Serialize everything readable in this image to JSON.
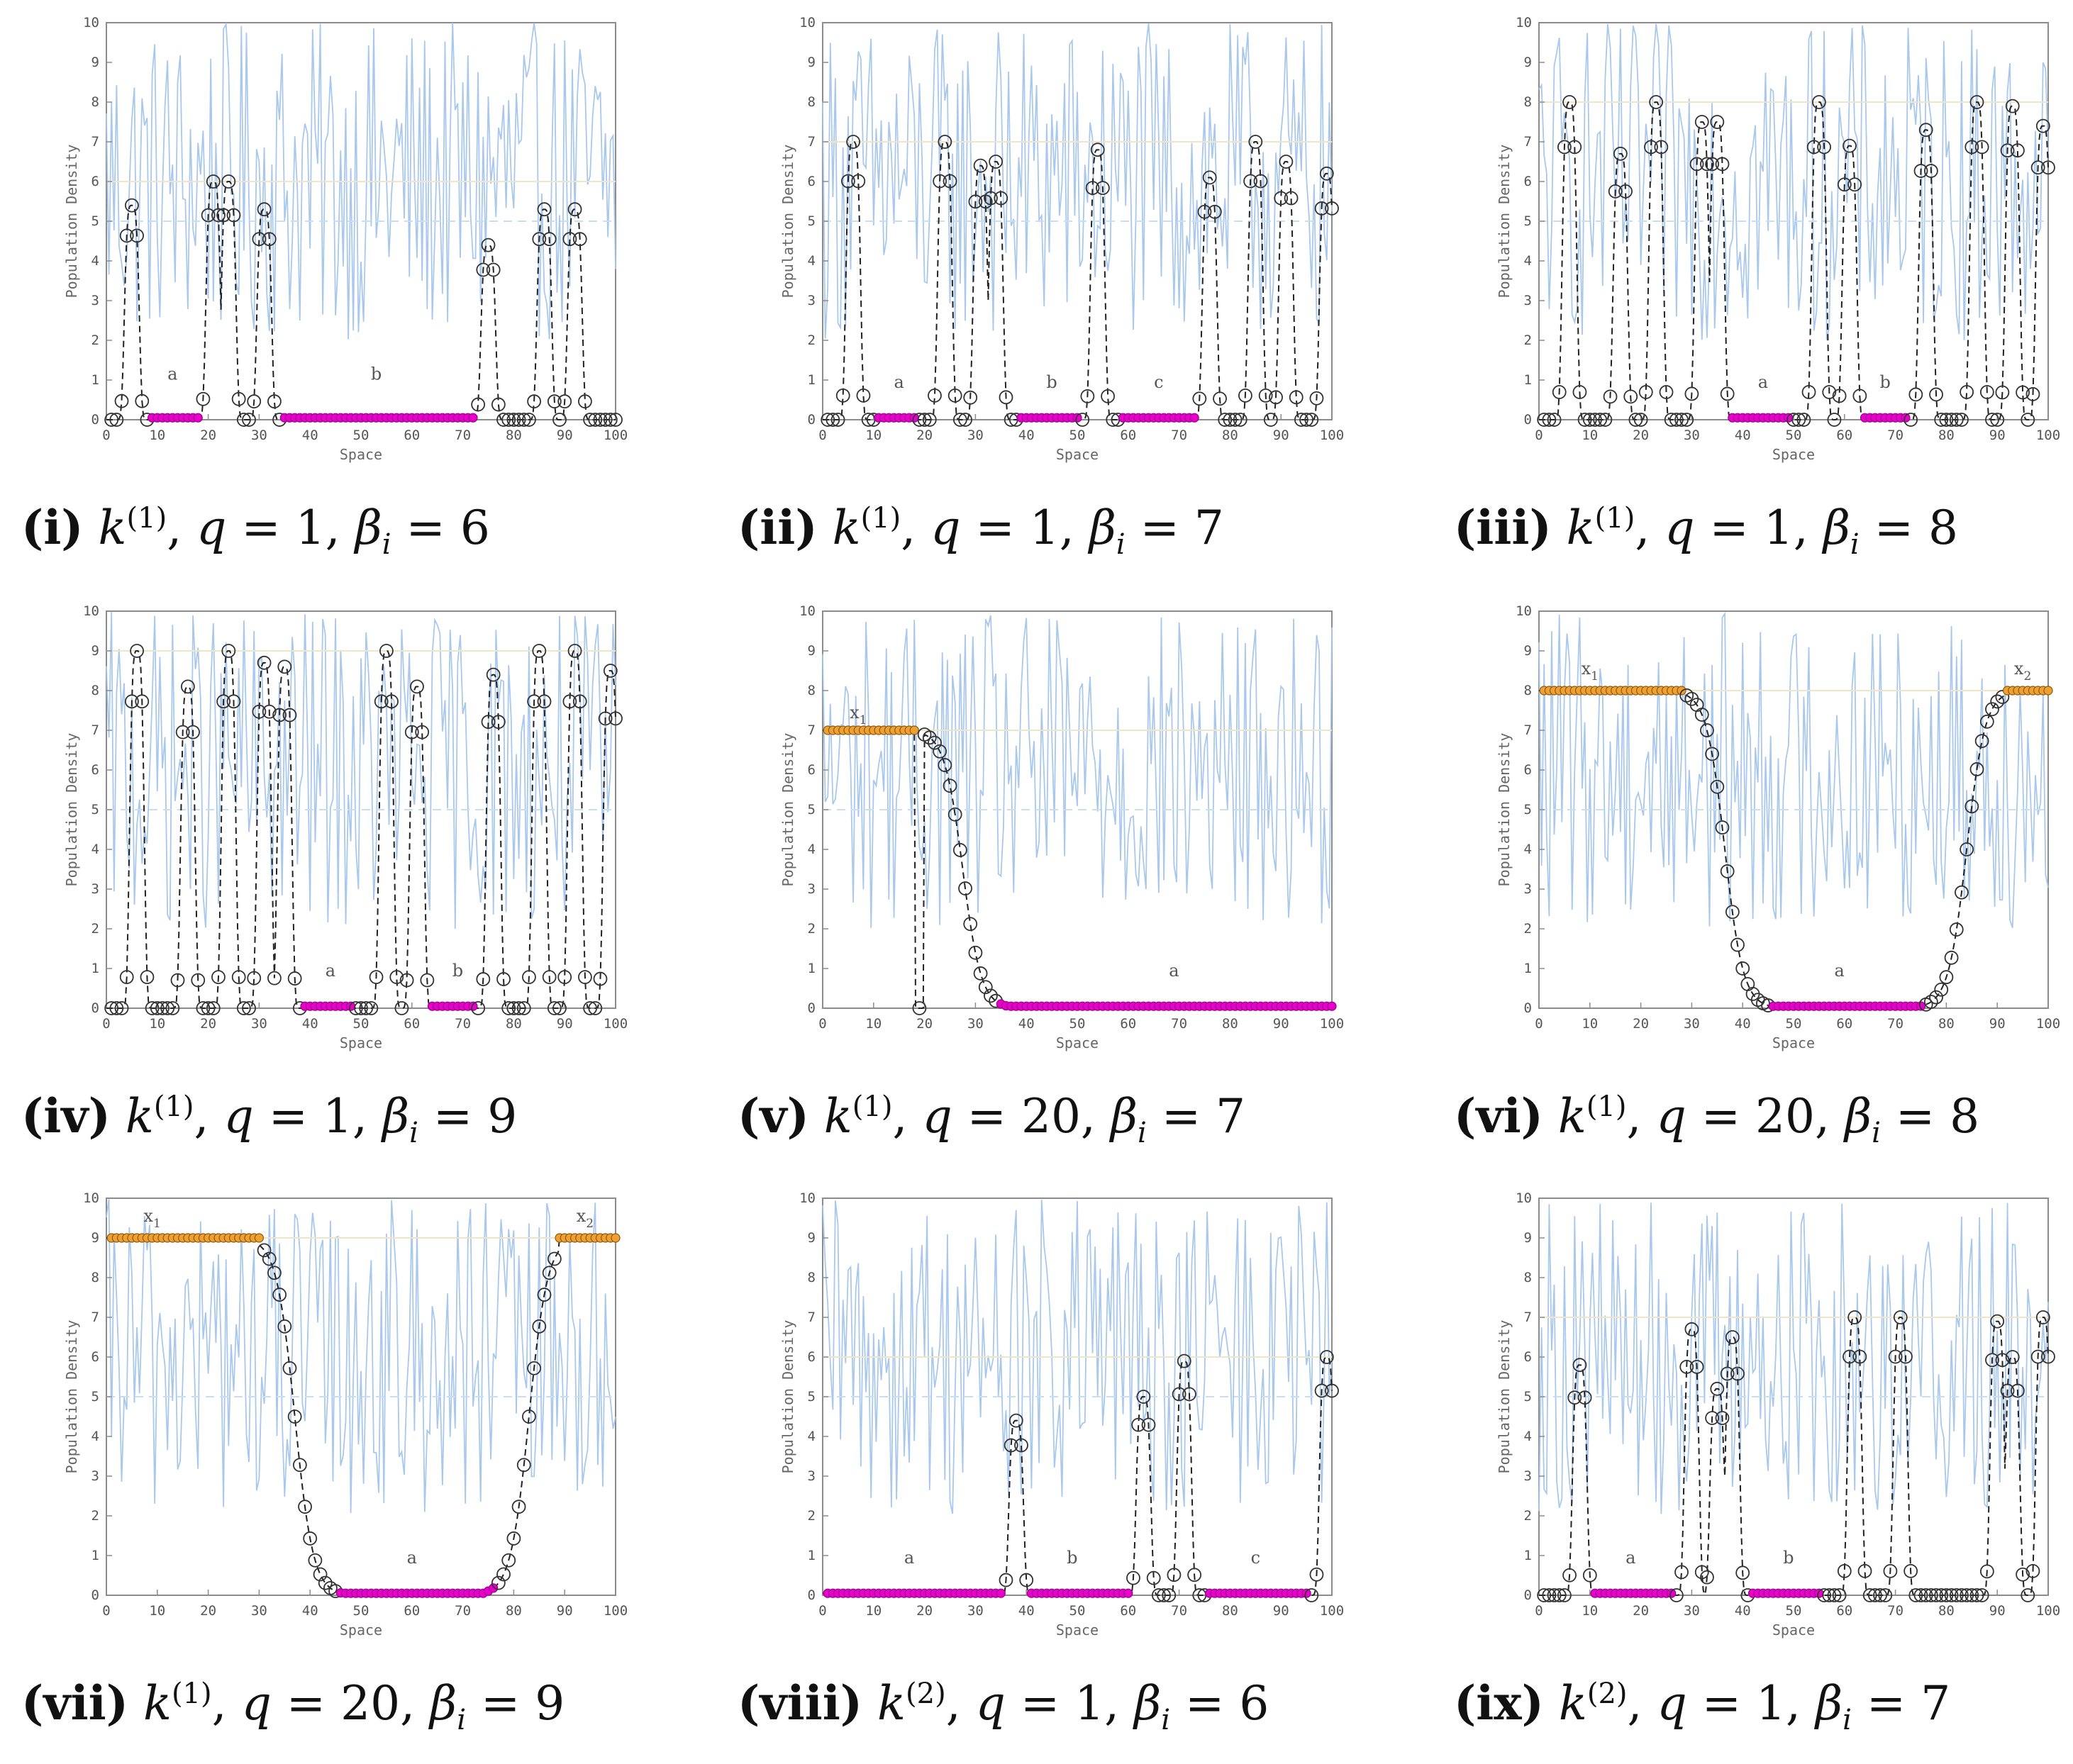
{
  "chart_data": [
    {
      "id": "i",
      "type": "line",
      "caption": {
        "num": "(i)",
        "k": "k",
        "kexp": "(1)",
        "q": "1",
        "beta": "6"
      },
      "xlabel": "Space",
      "ylabel": "Population Density",
      "xlim": [
        0,
        100
      ],
      "ylim": [
        0,
        10
      ],
      "xticks": [
        0,
        10,
        20,
        30,
        40,
        50,
        60,
        70,
        80,
        90,
        100
      ],
      "yticks": [
        0,
        1,
        2,
        3,
        4,
        5,
        6,
        7,
        8,
        9,
        10
      ],
      "threshold": 6,
      "midline": 5,
      "annotations": [
        {
          "text": "a",
          "x": 13,
          "y": 0.9
        },
        {
          "text": "b",
          "x": 53,
          "y": 0.9
        }
      ],
      "bumps": [
        [
          5,
          5.4
        ],
        [
          21,
          6
        ],
        [
          24,
          6
        ],
        [
          31,
          5.3
        ],
        [
          75,
          4.4
        ],
        [
          86,
          5.3
        ],
        [
          92,
          5.3
        ]
      ],
      "zero_segments": [
        [
          9,
          18
        ],
        [
          35,
          73
        ]
      ],
      "plateaus": []
    },
    {
      "id": "ii",
      "type": "line",
      "caption": {
        "num": "(ii)",
        "k": "k",
        "kexp": "(1)",
        "q": "1",
        "beta": "7"
      },
      "xlabel": "Space",
      "ylabel": "Population Density",
      "xlim": [
        0,
        100
      ],
      "ylim": [
        0,
        10
      ],
      "xticks": [
        0,
        10,
        20,
        30,
        40,
        50,
        60,
        70,
        80,
        90,
        100
      ],
      "yticks": [
        0,
        1,
        2,
        3,
        4,
        5,
        6,
        7,
        8,
        9,
        10
      ],
      "threshold": 7,
      "midline": 5,
      "annotations": [
        {
          "text": "a",
          "x": 15,
          "y": 0.7
        },
        {
          "text": "b",
          "x": 45,
          "y": 0.7
        },
        {
          "text": "c",
          "x": 66,
          "y": 0.7
        }
      ],
      "bumps": [
        [
          6,
          7
        ],
        [
          24,
          7
        ],
        [
          31,
          6.4
        ],
        [
          34,
          6.5
        ],
        [
          54,
          6.8
        ],
        [
          76,
          6.1
        ],
        [
          85,
          7
        ],
        [
          91,
          6.5
        ],
        [
          99,
          6.2
        ]
      ],
      "zero_segments": [
        [
          11,
          18
        ],
        [
          39,
          50
        ],
        [
          59,
          73
        ]
      ],
      "plateaus": []
    },
    {
      "id": "iii",
      "type": "line",
      "caption": {
        "num": "(iii)",
        "k": "k",
        "kexp": "(1)",
        "q": "1",
        "beta": "8"
      },
      "xlabel": "Space",
      "ylabel": "Population Density",
      "xlim": [
        0,
        100
      ],
      "ylim": [
        0,
        10
      ],
      "xticks": [
        0,
        10,
        20,
        30,
        40,
        50,
        60,
        70,
        80,
        90,
        100
      ],
      "yticks": [
        0,
        1,
        2,
        3,
        4,
        5,
        6,
        7,
        8,
        9,
        10
      ],
      "threshold": 8,
      "midline": 5,
      "annotations": [
        {
          "text": "a",
          "x": 44,
          "y": 0.7
        },
        {
          "text": "b",
          "x": 68,
          "y": 0.7
        }
      ],
      "bumps": [
        [
          6,
          8
        ],
        [
          16,
          6.7
        ],
        [
          23,
          8
        ],
        [
          32,
          7.5
        ],
        [
          35,
          7.5
        ],
        [
          55,
          8
        ],
        [
          61,
          6.9
        ],
        [
          76,
          7.3
        ],
        [
          86,
          8
        ],
        [
          93,
          7.9
        ],
        [
          99,
          7.4
        ]
      ],
      "zero_segments": [
        [
          38,
          49
        ],
        [
          63,
          72
        ]
      ],
      "plateaus": []
    },
    {
      "id": "iv",
      "type": "line",
      "caption": {
        "num": "(iv)",
        "k": "k",
        "kexp": "(1)",
        "q": "1",
        "beta": "9"
      },
      "xlabel": "Space",
      "ylabel": "Population Density",
      "xlim": [
        0,
        100
      ],
      "ylim": [
        0,
        10
      ],
      "xticks": [
        0,
        10,
        20,
        30,
        40,
        50,
        60,
        70,
        80,
        90,
        100
      ],
      "yticks": [
        0,
        1,
        2,
        3,
        4,
        5,
        6,
        7,
        8,
        9,
        10
      ],
      "threshold": 9,
      "midline": 5,
      "annotations": [
        {
          "text": "a",
          "x": 44,
          "y": 0.7
        },
        {
          "text": "b",
          "x": 69,
          "y": 0.7
        }
      ],
      "bumps": [
        [
          6,
          9
        ],
        [
          16,
          8.1
        ],
        [
          24,
          9
        ],
        [
          31,
          8.7
        ],
        [
          35,
          8.6
        ],
        [
          55,
          9
        ],
        [
          61,
          8.1
        ],
        [
          76,
          8.4
        ],
        [
          85,
          9
        ],
        [
          92,
          9
        ],
        [
          99,
          8.5
        ]
      ],
      "zero_segments": [
        [
          39,
          48
        ],
        [
          64,
          72
        ]
      ],
      "plateaus": []
    },
    {
      "id": "v",
      "type": "line",
      "caption": {
        "num": "(v)",
        "k": "k",
        "kexp": "(1)",
        "q": "20",
        "beta": "7"
      },
      "xlabel": "Space",
      "ylabel": "Population Density",
      "xlim": [
        0,
        100
      ],
      "ylim": [
        0,
        10
      ],
      "xticks": [
        0,
        10,
        20,
        30,
        40,
        50,
        60,
        70,
        80,
        90,
        100
      ],
      "yticks": [
        0,
        1,
        2,
        3,
        4,
        5,
        6,
        7,
        8,
        9,
        10
      ],
      "threshold": 7,
      "midline": 5,
      "annotations": [
        {
          "text": "x",
          "sub": "1",
          "x": 7,
          "y": 7.2
        },
        {
          "text": "a",
          "x": 69,
          "y": 0.7
        }
      ],
      "bumps": [],
      "zero_segments": [
        [
          35,
          100
        ]
      ],
      "plateaus": [
        {
          "from": 0,
          "to": 18,
          "level": 7
        }
      ],
      "transitions": [
        {
          "from": 20,
          "to": 36,
          "hi": 7,
          "center": 27.5,
          "dir": "down"
        }
      ]
    },
    {
      "id": "vi",
      "type": "line",
      "caption": {
        "num": "(vi)",
        "k": "k",
        "kexp": "(1)",
        "q": "20",
        "beta": "8"
      },
      "xlabel": "Space",
      "ylabel": "Population Density",
      "xlim": [
        0,
        100
      ],
      "ylim": [
        0,
        10
      ],
      "xticks": [
        0,
        10,
        20,
        30,
        40,
        50,
        60,
        70,
        80,
        90,
        100
      ],
      "yticks": [
        0,
        1,
        2,
        3,
        4,
        5,
        6,
        7,
        8,
        9,
        10
      ],
      "threshold": 8,
      "midline": 5,
      "annotations": [
        {
          "text": "x",
          "sub": "1",
          "x": 10,
          "y": 8.3
        },
        {
          "text": "x",
          "sub": "2",
          "x": 95,
          "y": 8.3
        },
        {
          "text": "a",
          "x": 59,
          "y": 0.7
        }
      ],
      "bumps": [],
      "zero_segments": [
        [
          46,
          75
        ]
      ],
      "plateaus": [
        {
          "from": 0,
          "to": 28,
          "level": 8
        },
        {
          "from": 92,
          "to": 100,
          "level": 8
        }
      ],
      "transitions": [
        {
          "from": 28,
          "to": 46,
          "hi": 8,
          "center": 36.5,
          "dir": "down"
        },
        {
          "from": 75,
          "to": 93,
          "hi": 8,
          "center": 84,
          "dir": "up"
        }
      ]
    },
    {
      "id": "vii",
      "type": "line",
      "caption": {
        "num": "(vii)",
        "k": "k",
        "kexp": "(1)",
        "q": "20",
        "beta": "9"
      },
      "xlabel": "Space",
      "ylabel": "Population Density",
      "xlim": [
        0,
        100
      ],
      "ylim": [
        0,
        10
      ],
      "xticks": [
        0,
        10,
        20,
        30,
        40,
        50,
        60,
        70,
        80,
        90,
        100
      ],
      "yticks": [
        0,
        1,
        2,
        3,
        4,
        5,
        6,
        7,
        8,
        9,
        10
      ],
      "threshold": 9,
      "midline": 5,
      "annotations": [
        {
          "text": "x",
          "sub": "1",
          "x": 9,
          "y": 9.3
        },
        {
          "text": "x",
          "sub": "2",
          "x": 94,
          "y": 9.3
        },
        {
          "text": "a",
          "x": 60,
          "y": 0.7
        }
      ],
      "bumps": [],
      "zero_segments": [
        [
          46,
          76
        ]
      ],
      "plateaus": [
        {
          "from": 0,
          "to": 30,
          "level": 9
        },
        {
          "from": 89,
          "to": 100,
          "level": 9
        }
      ],
      "transitions": [
        {
          "from": 30,
          "to": 47,
          "hi": 9,
          "center": 37,
          "dir": "down"
        },
        {
          "from": 75,
          "to": 90,
          "hi": 9,
          "center": 83,
          "dir": "up"
        }
      ]
    },
    {
      "id": "viii",
      "type": "line",
      "caption": {
        "num": "(viii)",
        "k": "k",
        "kexp": "(2)",
        "q": "1",
        "beta": "6"
      },
      "xlabel": "Space",
      "ylabel": "Population Density",
      "xlim": [
        0,
        100
      ],
      "ylim": [
        0,
        10
      ],
      "xticks": [
        0,
        10,
        20,
        30,
        40,
        50,
        60,
        70,
        80,
        90,
        100
      ],
      "yticks": [
        0,
        1,
        2,
        3,
        4,
        5,
        6,
        7,
        8,
        9,
        10
      ],
      "threshold": 6,
      "midline": 5,
      "annotations": [
        {
          "text": "a",
          "x": 17,
          "y": 0.7
        },
        {
          "text": "b",
          "x": 49,
          "y": 0.7
        },
        {
          "text": "c",
          "x": 85,
          "y": 0.7
        }
      ],
      "bumps": [
        [
          38,
          4.4
        ],
        [
          63,
          5
        ],
        [
          71,
          5.9
        ],
        [
          99,
          6
        ]
      ],
      "zero_segments": [
        [
          0,
          36
        ],
        [
          40,
          60
        ],
        [
          76,
          95
        ]
      ],
      "plateaus": []
    },
    {
      "id": "ix",
      "type": "line",
      "caption": {
        "num": "(ix)",
        "k": "k",
        "kexp": "(2)",
        "q": "1",
        "beta": "7"
      },
      "xlabel": "Space",
      "ylabel": "Population Density",
      "xlim": [
        0,
        100
      ],
      "ylim": [
        0,
        10
      ],
      "xticks": [
        0,
        10,
        20,
        30,
        40,
        50,
        60,
        70,
        80,
        90,
        100
      ],
      "yticks": [
        0,
        1,
        2,
        3,
        4,
        5,
        6,
        7,
        8,
        9,
        10
      ],
      "threshold": 7,
      "midline": 5,
      "annotations": [
        {
          "text": "a",
          "x": 18,
          "y": 0.7
        },
        {
          "text": "b",
          "x": 49,
          "y": 0.7
        }
      ],
      "bumps": [
        [
          8,
          5.8
        ],
        [
          30,
          6.7
        ],
        [
          35,
          5.2
        ],
        [
          38,
          6.5
        ],
        [
          62,
          7
        ],
        [
          71,
          7
        ],
        [
          90,
          6.9
        ],
        [
          93,
          6
        ],
        [
          99,
          7
        ]
      ],
      "zero_segments": [
        [
          11,
          26
        ],
        [
          42,
          55
        ]
      ],
      "plateaus": []
    }
  ]
}
